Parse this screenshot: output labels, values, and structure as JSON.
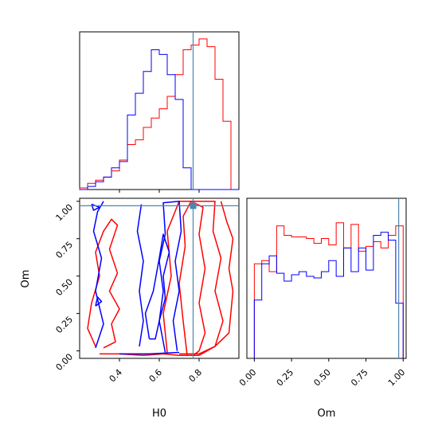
{
  "chart_data": {
    "type": "corner",
    "colors": {
      "run_a": "#ff0000",
      "run_b": "#0000ff",
      "truth": "#4a86b0"
    },
    "truth": {
      "H0": 0.77,
      "Om": 0.97
    },
    "panels": [
      {
        "id": "H0_hist",
        "type": "step-histogram",
        "parameter": "H0",
        "xlim": [
          0.2,
          1.0
        ],
        "bin_edges": [
          0.2,
          0.24,
          0.28,
          0.32,
          0.36,
          0.4,
          0.44,
          0.48,
          0.52,
          0.56,
          0.6,
          0.64,
          0.68,
          0.72,
          0.76,
          0.8,
          0.84,
          0.88,
          0.92,
          0.96,
          1.0
        ],
        "series": [
          {
            "key": "run_a",
            "color": "#ff0000",
            "values": [
              0.01,
              0.04,
              0.06,
              0.08,
              0.12,
              0.19,
              0.29,
              0.32,
              0.4,
              0.46,
              0.52,
              0.6,
              0.74,
              0.9,
              0.93,
              0.97,
              0.92,
              0.71,
              0.44,
              0.0
            ]
          },
          {
            "key": "run_b",
            "color": "#0000ff",
            "values": [
              0.0,
              0.02,
              0.05,
              0.08,
              0.14,
              0.18,
              0.48,
              0.62,
              0.76,
              0.9,
              0.87,
              0.74,
              0.58,
              0.14,
              0.0,
              0.0,
              0.0,
              0.0,
              0.0,
              0.0
            ]
          }
        ]
      },
      {
        "id": "Om_hist",
        "type": "step-histogram",
        "parameter": "Om",
        "xlabel": "Om",
        "xlim": [
          -0.05,
          1.02
        ],
        "xticks": [
          "0.00",
          "0.25",
          "0.50",
          "0.75",
          "1.00"
        ],
        "xtick_values": [
          0,
          0.25,
          0.5,
          0.75,
          1.0
        ],
        "bin_edges": [
          0.0,
          0.05,
          0.1,
          0.15,
          0.2,
          0.25,
          0.3,
          0.35,
          0.4,
          0.45,
          0.5,
          0.55,
          0.6,
          0.65,
          0.7,
          0.75,
          0.8,
          0.85,
          0.9,
          0.95,
          1.0
        ],
        "series": [
          {
            "key": "run_a",
            "color": "#ff0000",
            "values": [
              0.6,
              0.62,
              0.55,
              0.84,
              0.78,
              0.77,
              0.77,
              0.76,
              0.73,
              0.76,
              0.72,
              0.86,
              0.7,
              0.85,
              0.68,
              0.71,
              0.74,
              0.7,
              0.78,
              0.84
            ]
          },
          {
            "key": "run_b",
            "color": "#0000ff",
            "values": [
              0.37,
              0.6,
              0.65,
              0.54,
              0.49,
              0.53,
              0.55,
              0.52,
              0.51,
              0.55,
              0.62,
              0.52,
              0.7,
              0.55,
              0.7,
              0.56,
              0.78,
              0.8,
              0.75,
              0.35
            ]
          }
        ]
      },
      {
        "id": "H0_Om_2d",
        "type": "contour",
        "xlabel": "H0",
        "ylabel": "Om",
        "xlim": [
          0.2,
          1.0
        ],
        "ylim": [
          -0.05,
          1.02
        ],
        "xticks": [
          "0.4",
          "0.6",
          "0.8"
        ],
        "xtick_values": [
          0.4,
          0.6,
          0.8
        ],
        "yticks": [
          "0.00",
          "0.25",
          "0.50",
          "0.75",
          "1.00"
        ],
        "ytick_values": [
          0,
          0.25,
          0.5,
          0.75,
          1.0
        ],
        "contours": [
          {
            "key": "run_a",
            "color": "#ff0000",
            "points": [
              [
                0.28,
                0.03
              ],
              [
                0.24,
                0.15
              ],
              [
                0.26,
                0.32
              ],
              [
                0.3,
                0.5
              ],
              [
                0.28,
                0.66
              ],
              [
                0.32,
                0.8
              ],
              [
                0.36,
                0.88
              ],
              [
                0.39,
                0.84
              ],
              [
                0.35,
                0.68
              ],
              [
                0.39,
                0.52
              ],
              [
                0.35,
                0.4
              ],
              [
                0.4,
                0.28
              ],
              [
                0.36,
                0.18
              ],
              [
                0.38,
                0.06
              ],
              [
                0.32,
                0.02
              ]
            ]
          },
          {
            "key": "run_a",
            "color": "#ff0000",
            "points": [
              [
                0.74,
                -0.03
              ],
              [
                0.72,
                0.2
              ],
              [
                0.7,
                0.45
              ],
              [
                0.73,
                0.7
              ],
              [
                0.72,
                0.9
              ],
              [
                0.76,
                1.0
              ],
              [
                0.82,
                0.96
              ],
              [
                0.8,
                0.78
              ],
              [
                0.83,
                0.55
              ],
              [
                0.8,
                0.32
              ],
              [
                0.83,
                0.12
              ],
              [
                0.8,
                0.0
              ],
              [
                0.77,
                -0.03
              ]
            ]
          },
          {
            "key": "run_a",
            "color": "#ff0000",
            "points": [
              [
                0.64,
                -0.01
              ],
              [
                0.62,
                0.25
              ],
              [
                0.66,
                0.5
              ],
              [
                0.64,
                0.8
              ],
              [
                0.7,
                1.0
              ],
              [
                0.88,
                1.0
              ],
              [
                0.87,
                0.8
              ],
              [
                0.91,
                0.62
              ],
              [
                0.88,
                0.4
              ],
              [
                0.92,
                0.2
              ],
              [
                0.88,
                0.03
              ],
              [
                0.8,
                -0.02
              ],
              [
                0.7,
                -0.02
              ]
            ]
          },
          {
            "key": "run_a",
            "color": "#ff0000",
            "points": [
              [
                0.3,
                -0.02
              ],
              [
                0.4,
                -0.02
              ],
              [
                0.52,
                -0.03
              ],
              [
                0.62,
                -0.02
              ],
              [
                0.7,
                -0.03
              ],
              [
                0.8,
                -0.03
              ],
              [
                0.88,
                0.03
              ],
              [
                0.95,
                0.12
              ],
              [
                0.97,
                0.4
              ],
              [
                0.95,
                0.55
              ],
              [
                0.97,
                0.75
              ],
              [
                0.94,
                0.86
              ],
              [
                0.91,
                1.0
              ]
            ]
          },
          {
            "key": "run_b",
            "color": "#0000ff",
            "points": [
              [
                0.28,
                0.02
              ],
              [
                0.32,
                0.18
              ],
              [
                0.28,
                0.4
              ],
              [
                0.31,
                0.62
              ],
              [
                0.27,
                0.8
              ],
              [
                0.29,
                0.93
              ],
              [
                0.32,
                1.0
              ]
            ]
          },
          {
            "key": "run_b",
            "color": "#0000ff",
            "points": [
              [
                0.5,
                0.03
              ],
              [
                0.52,
                0.2
              ],
              [
                0.5,
                0.4
              ],
              [
                0.52,
                0.6
              ],
              [
                0.49,
                0.8
              ],
              [
                0.51,
                0.98
              ]
            ]
          },
          {
            "key": "run_b",
            "color": "#0000ff",
            "points": [
              [
                0.55,
                0.08
              ],
              [
                0.53,
                0.25
              ],
              [
                0.57,
                0.4
              ],
              [
                0.6,
                0.62
              ],
              [
                0.62,
                0.78
              ],
              [
                0.65,
                0.66
              ],
              [
                0.62,
                0.5
              ],
              [
                0.63,
                0.35
              ],
              [
                0.6,
                0.2
              ],
              [
                0.58,
                0.08
              ],
              [
                0.55,
                0.08
              ]
            ]
          },
          {
            "key": "run_b",
            "color": "#0000ff",
            "points": [
              [
                0.63,
                -0.01
              ],
              [
                0.6,
                0.2
              ],
              [
                0.62,
                0.4
              ],
              [
                0.6,
                0.6
              ],
              [
                0.63,
                0.78
              ],
              [
                0.62,
                0.99
              ],
              [
                0.7,
                1.0
              ],
              [
                0.71,
                0.8
              ],
              [
                0.68,
                0.6
              ],
              [
                0.7,
                0.4
              ],
              [
                0.67,
                0.2
              ],
              [
                0.69,
                0.0
              ]
            ]
          },
          {
            "key": "run_b",
            "color": "#0000ff",
            "points": [
              [
                0.4,
                -0.02
              ],
              [
                0.55,
                -0.02
              ],
              [
                0.7,
                -0.01
              ]
            ]
          },
          {
            "key": "run_b",
            "color": "#0000ff",
            "points": [
              [
                0.26,
                0.98
              ],
              [
                0.3,
                0.96
              ],
              [
                0.27,
                0.94
              ],
              [
                0.26,
                0.98
              ]
            ]
          },
          {
            "key": "run_b",
            "color": "#0000ff",
            "points": [
              [
                0.28,
                0.3
              ],
              [
                0.31,
                0.33
              ],
              [
                0.29,
                0.36
              ],
              [
                0.28,
                0.3
              ]
            ]
          }
        ]
      }
    ]
  }
}
